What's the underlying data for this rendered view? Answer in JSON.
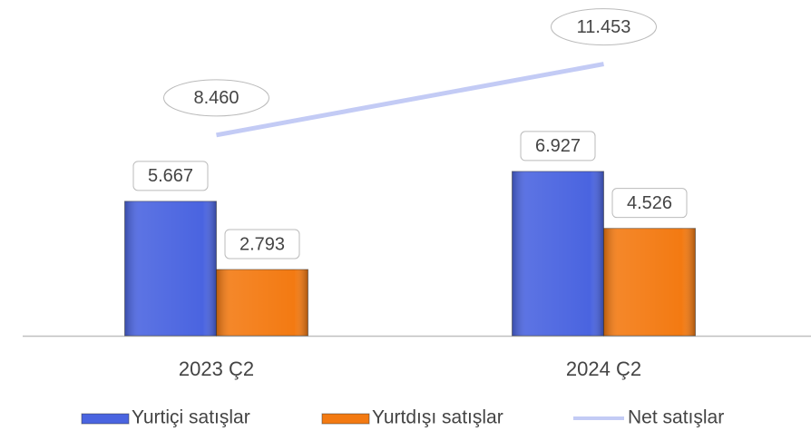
{
  "chart_data": {
    "type": "bar",
    "categories": [
      "2023 Ç2",
      "2024 Ç2"
    ],
    "series": [
      {
        "name": "Yurtiçi satışlar",
        "color": "#4a64e0",
        "values": [
          5667,
          6927
        ],
        "value_labels": [
          "5.667",
          "6.927"
        ]
      },
      {
        "name": "Yurtdışı satışlar",
        "color": "#f37a12",
        "values": [
          2793,
          4526
        ],
        "value_labels": [
          "2.793",
          "4.526"
        ]
      },
      {
        "name": "Net satışlar",
        "type": "line",
        "color": "#c3cbf5",
        "values": [
          8460,
          11453
        ],
        "value_labels": [
          "8.460",
          "11.453"
        ]
      }
    ],
    "ylim": [
      0,
      14000
    ],
    "legend": "bottom"
  }
}
